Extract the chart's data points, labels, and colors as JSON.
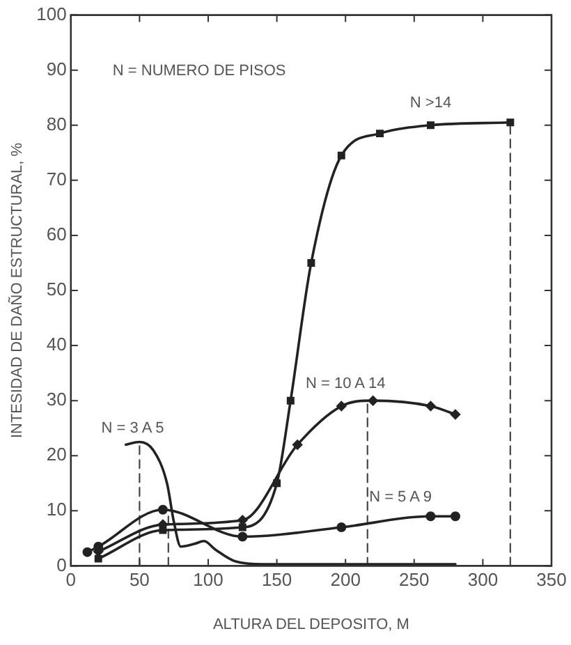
{
  "chart_data": {
    "type": "line",
    "xlabel": "ALTURA DEL DEPOSITO, M",
    "ylabel": "INTESIDAD DE DAÑO ESTRUCTURAL, %",
    "annotations": [
      "N = NUMERO DE PISOS"
    ],
    "xlim": [
      0,
      350
    ],
    "xticks": [
      0,
      50,
      100,
      150,
      200,
      250,
      300,
      350
    ],
    "ylim": [
      0,
      100
    ],
    "yticks": [
      0,
      10,
      20,
      30,
      40,
      50,
      60,
      70,
      80,
      90,
      100
    ],
    "grid": false,
    "legend": false,
    "line_style": "solid",
    "series": [
      {
        "name": "N >14",
        "color": "#222222",
        "marker": "square",
        "x": [
          20,
          67,
          125,
          150,
          160,
          175,
          197,
          225,
          262,
          320
        ],
        "values": [
          1.3,
          6.5,
          7,
          15,
          30,
          55,
          74.5,
          78.5,
          80,
          80.5
        ]
      },
      {
        "name": "N = 10 A 14",
        "color": "#222222",
        "marker": "diamond",
        "x": [
          20,
          67,
          125,
          165,
          197,
          220,
          262,
          280
        ],
        "values": [
          2.6,
          7.5,
          8.3,
          22,
          29,
          30,
          29,
          27.5
        ]
      },
      {
        "name": "N = 5 A 9",
        "color": "#222222",
        "marker": "circle",
        "x": [
          12,
          20,
          67,
          125,
          197,
          262,
          280
        ],
        "values": [
          2.5,
          3.5,
          10.2,
          5.3,
          7,
          9,
          9
        ]
      },
      {
        "name": "N = 3 A 5",
        "color": "#222222",
        "marker": "none",
        "x": [
          40,
          50,
          60,
          70,
          75,
          80,
          90,
          97,
          105,
          120,
          140,
          280
        ],
        "values": [
          22,
          22.5,
          21,
          15,
          8,
          3.5,
          4,
          4.5,
          3,
          0.8,
          0.3,
          0.3
        ]
      },
      {
        "color": "#444444",
        "marker": "none",
        "line_style": "dashed",
        "x": [
          50,
          50
        ],
        "values": [
          0,
          22.5
        ]
      },
      {
        "color": "#444444",
        "marker": "none",
        "line_style": "dashed",
        "x": [
          71,
          71
        ],
        "values": [
          0,
          9
        ]
      },
      {
        "color": "#444444",
        "marker": "none",
        "line_style": "dashed",
        "x": [
          216,
          216
        ],
        "values": [
          0,
          30
        ]
      },
      {
        "color": "#444444",
        "marker": "none",
        "line_style": "dashed",
        "x": [
          320,
          320
        ],
        "values": [
          0,
          80.5
        ]
      }
    ]
  }
}
